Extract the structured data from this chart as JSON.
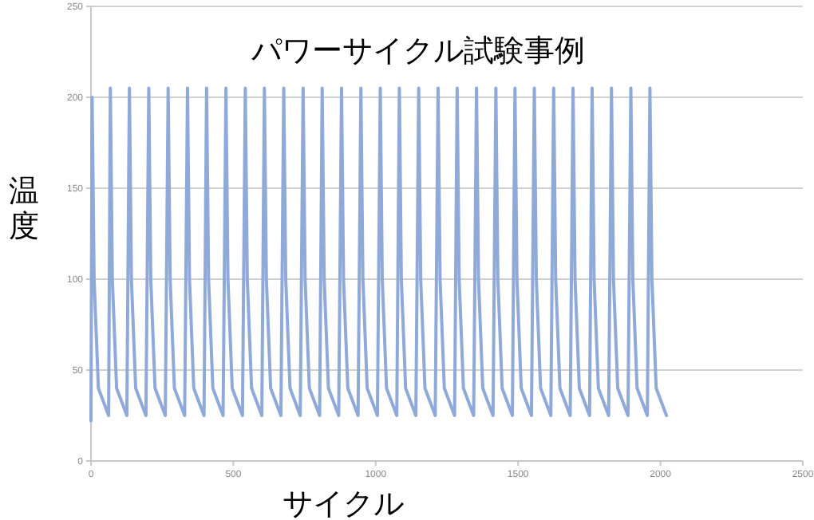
{
  "chart_data": {
    "type": "line",
    "title": "パワーサイクル試験事例",
    "xlabel": "サイクル",
    "ylabel": "温度",
    "xlim": [
      0,
      2500
    ],
    "xticks": [
      0,
      500,
      1000,
      1500,
      2000,
      2500
    ],
    "ylim": [
      0,
      250
    ],
    "yticks": [
      0,
      50,
      100,
      150,
      200,
      250
    ],
    "grid": "y",
    "marker": "none",
    "line_style": "solid",
    "series": [
      {
        "color": "#8faad8",
        "x": [
          0,
          4,
          11,
          26,
          62,
          68,
          75,
          90,
          126,
          135,
          142,
          157,
          193,
          203,
          210,
          225,
          261,
          271,
          278,
          293,
          329,
          339,
          346,
          361,
          397,
          406,
          413,
          428,
          464,
          474,
          481,
          496,
          532,
          542,
          549,
          564,
          600,
          609,
          616,
          631,
          667,
          677,
          684,
          699,
          735,
          745,
          752,
          767,
          803,
          812,
          819,
          834,
          870,
          880,
          887,
          902,
          938,
          948,
          955,
          970,
          1006,
          1016,
          1023,
          1038,
          1074,
          1083,
          1090,
          1105,
          1141,
          1151,
          1158,
          1173,
          1209,
          1219,
          1226,
          1241,
          1277,
          1286,
          1293,
          1308,
          1344,
          1354,
          1361,
          1376,
          1412,
          1422,
          1429,
          1444,
          1480,
          1489,
          1496,
          1511,
          1547,
          1557,
          1564,
          1579,
          1615,
          1625,
          1632,
          1647,
          1683,
          1693,
          1700,
          1715,
          1751,
          1760,
          1767,
          1782,
          1818,
          1828,
          1835,
          1850,
          1886,
          1896,
          1903,
          1918,
          1954,
          1963,
          1970,
          1985,
          2021
        ],
        "values": [
          22,
          200,
          100,
          40,
          25,
          205,
          100,
          40,
          25,
          205,
          100,
          40,
          25,
          205,
          100,
          40,
          25,
          205,
          100,
          40,
          25,
          205,
          100,
          40,
          25,
          205,
          100,
          40,
          25,
          205,
          100,
          40,
          25,
          205,
          100,
          40,
          25,
          205,
          100,
          40,
          25,
          205,
          100,
          40,
          25,
          205,
          100,
          40,
          25,
          205,
          100,
          40,
          25,
          205,
          100,
          40,
          25,
          205,
          100,
          40,
          25,
          205,
          100,
          40,
          25,
          205,
          100,
          40,
          25,
          205,
          100,
          40,
          25,
          205,
          100,
          40,
          25,
          205,
          100,
          40,
          25,
          205,
          100,
          40,
          25,
          205,
          100,
          40,
          25,
          205,
          100,
          40,
          25,
          205,
          100,
          40,
          25,
          205,
          100,
          40,
          25,
          205,
          100,
          40,
          25,
          205,
          100,
          40,
          25,
          205,
          100,
          40,
          25,
          205,
          100,
          40,
          25,
          205,
          100,
          40,
          25
        ]
      }
    ]
  }
}
